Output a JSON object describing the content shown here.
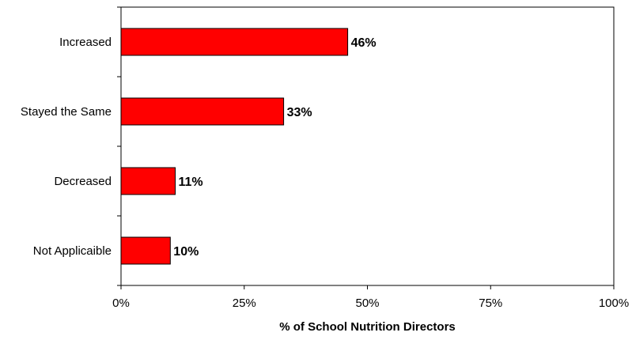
{
  "chart_data": {
    "type": "bar",
    "orientation": "horizontal",
    "categories": [
      "Increased",
      "Stayed the Same",
      "Decreased",
      "Not Applicaible"
    ],
    "values": [
      46,
      33,
      11,
      10
    ],
    "data_labels": [
      "46%",
      "33%",
      "11%",
      "10%"
    ],
    "xlabel": "% of School Nutrition Directors",
    "ylabel": "",
    "xlim": [
      0,
      100
    ],
    "x_ticks": [
      0,
      25,
      50,
      75,
      100
    ],
    "x_tick_labels": [
      "0%",
      "25%",
      "50%",
      "75%",
      "100%"
    ],
    "grid": false,
    "legend": "none",
    "bar_color": "#ff0000",
    "bar_edge_color": "#000000"
  }
}
